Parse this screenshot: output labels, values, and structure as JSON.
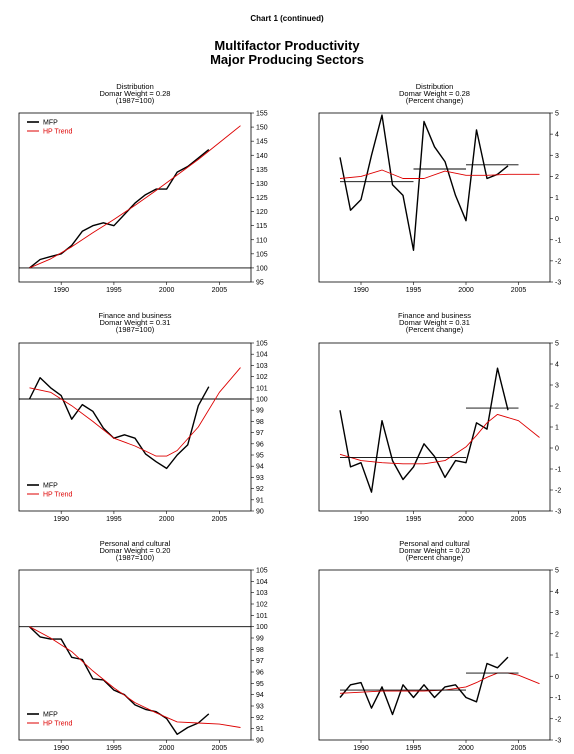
{
  "page": {
    "header": "Chart 1 (continued)",
    "title": "Multifactor Productivity",
    "subtitle": "Major Producing Sectors"
  },
  "colors": {
    "mfp": "#000000",
    "trend": "#dd0000"
  },
  "chart_data": [
    {
      "type": "line",
      "title": "Distribution",
      "subtitle": "Domar Weight = 0.28",
      "subtitle2": "(1987=100)",
      "xlim": [
        1986,
        2008
      ],
      "ylim": [
        95,
        155
      ],
      "yticks": [
        95,
        100,
        105,
        110,
        115,
        120,
        125,
        130,
        135,
        140,
        145,
        150,
        155
      ],
      "xticks": [
        1990,
        1995,
        2000,
        2005
      ],
      "baseline": 100,
      "legend": "top-left",
      "series": [
        {
          "name": "MFP",
          "x": [
            1987,
            1988,
            1989,
            1990,
            1991,
            1992,
            1993,
            1994,
            1995,
            1996,
            1997,
            1998,
            1999,
            2000,
            2001,
            2002,
            2003,
            2004
          ],
          "y": [
            100,
            103,
            104,
            105,
            108,
            113,
            115,
            116,
            115,
            119,
            123,
            126,
            128,
            128,
            134,
            136,
            139,
            142
          ]
        },
        {
          "name": "HP Trend",
          "x": [
            1987,
            1989,
            1991,
            1993,
            1995,
            1997,
            1999,
            2001,
            2003,
            2005,
            2007
          ],
          "y": [
            100,
            103.2,
            107.5,
            112.5,
            117.2,
            122.2,
            127.5,
            133,
            138.5,
            144.5,
            150.5
          ]
        }
      ]
    },
    {
      "type": "line",
      "title": "Distribution",
      "subtitle": "Domar Weight = 0.28",
      "subtitle2": "(Percent change)",
      "xlim": [
        1986,
        2008
      ],
      "ylim": [
        -3,
        5
      ],
      "yticks": [
        -3,
        -2,
        -1,
        0,
        1,
        2,
        3,
        4,
        5
      ],
      "xticks": [
        1990,
        1995,
        2000,
        2005
      ],
      "series": [
        {
          "name": "MFP",
          "x": [
            1988,
            1989,
            1990,
            1991,
            1992,
            1993,
            1994,
            1995,
            1996,
            1997,
            1998,
            1999,
            2000,
            2001,
            2002,
            2003,
            2004
          ],
          "y": [
            2.9,
            0.4,
            0.9,
            3.0,
            4.9,
            1.6,
            1.1,
            -1.5,
            4.6,
            3.4,
            2.7,
            1.1,
            -0.1,
            4.2,
            1.9,
            2.1,
            2.5
          ]
        },
        {
          "name": "HP Trend",
          "x": [
            1988,
            1990,
            1992,
            1994,
            1996,
            1998,
            2000,
            2002,
            2004,
            2006,
            2007
          ],
          "y": [
            1.9,
            2.0,
            2.3,
            1.9,
            1.9,
            2.25,
            2.05,
            2.05,
            2.1,
            2.1,
            2.1
          ]
        },
        {
          "name": "Period average",
          "x": [
            1988,
            1995
          ],
          "y": [
            1.75,
            1.75
          ]
        },
        {
          "name": "Period average",
          "x": [
            1995,
            2000
          ],
          "y": [
            2.35,
            2.35
          ]
        },
        {
          "name": "Period average",
          "x": [
            2000,
            2005
          ],
          "y": [
            2.55,
            2.55
          ]
        }
      ]
    },
    {
      "type": "line",
      "title": "Finance and business",
      "subtitle": "Domar Weight = 0.31",
      "subtitle2": "(1987=100)",
      "xlim": [
        1986,
        2008
      ],
      "ylim": [
        90,
        105
      ],
      "yticks": [
        90,
        91,
        92,
        93,
        94,
        95,
        96,
        97,
        98,
        99,
        100,
        101,
        102,
        103,
        104,
        105
      ],
      "xticks": [
        1990,
        1995,
        2000,
        2005
      ],
      "baseline": 100,
      "legend": "bottom-left",
      "series": [
        {
          "name": "MFP",
          "x": [
            1987,
            1988,
            1989,
            1990,
            1991,
            1992,
            1993,
            1994,
            1995,
            1996,
            1997,
            1998,
            1999,
            2000,
            2001,
            2002,
            2003,
            2004
          ],
          "y": [
            100,
            101.9,
            101,
            100.3,
            98.2,
            99.5,
            98.9,
            97.4,
            96.5,
            96.8,
            96.5,
            95.1,
            94.4,
            93.8,
            95,
            95.9,
            99.4,
            101.1
          ]
        },
        {
          "name": "HP Trend",
          "x": [
            1987,
            1989,
            1991,
            1993,
            1995,
            1997,
            1999,
            2000,
            2001,
            2003,
            2005,
            2007
          ],
          "y": [
            101,
            100.6,
            99.4,
            98,
            96.5,
            95.8,
            94.9,
            94.9,
            95.4,
            97.5,
            100.6,
            102.8
          ]
        }
      ]
    },
    {
      "type": "line",
      "title": "Finance and business",
      "subtitle": "Domar Weight = 0.31",
      "subtitle2": "(Percent change)",
      "xlim": [
        1986,
        2008
      ],
      "ylim": [
        -3,
        5
      ],
      "yticks": [
        -3,
        -2,
        -1,
        0,
        1,
        2,
        3,
        4,
        5
      ],
      "xticks": [
        1990,
        1995,
        2000,
        2005
      ],
      "series": [
        {
          "name": "MFP",
          "x": [
            1988,
            1989,
            1990,
            1991,
            1992,
            1993,
            1994,
            1995,
            1996,
            1997,
            1998,
            1999,
            2000,
            2001,
            2002,
            2003,
            2004
          ],
          "y": [
            1.8,
            -0.9,
            -0.7,
            -2.1,
            1.3,
            -0.6,
            -1.5,
            -0.9,
            0.2,
            -0.4,
            -1.4,
            -0.6,
            -0.7,
            1.2,
            0.9,
            3.8,
            1.8
          ]
        },
        {
          "name": "HP Trend",
          "x": [
            1988,
            1990,
            1992,
            1994,
            1996,
            1998,
            2000,
            2001,
            2002,
            2003,
            2005,
            2007
          ],
          "y": [
            -0.3,
            -0.6,
            -0.7,
            -0.75,
            -0.75,
            -0.6,
            0.05,
            0.6,
            1.2,
            1.6,
            1.3,
            0.5
          ]
        },
        {
          "name": "Period average",
          "x": [
            1988,
            2000
          ],
          "y": [
            -0.45,
            -0.45
          ]
        },
        {
          "name": "Period average",
          "x": [
            2000,
            2005
          ],
          "y": [
            1.9,
            1.9
          ]
        }
      ]
    },
    {
      "type": "line",
      "title": "Personal and cultural",
      "subtitle": "Domar Weight = 0.20",
      "subtitle2": "(1987=100)",
      "xlim": [
        1986,
        2008
      ],
      "ylim": [
        90,
        105
      ],
      "yticks": [
        90,
        91,
        92,
        93,
        94,
        95,
        96,
        97,
        98,
        99,
        100,
        101,
        102,
        103,
        104,
        105
      ],
      "xticks": [
        1990,
        1995,
        2000,
        2005
      ],
      "baseline": 100,
      "legend": "bottom-left",
      "series": [
        {
          "name": "MFP",
          "x": [
            1987,
            1988,
            1989,
            1990,
            1991,
            1992,
            1993,
            1994,
            1995,
            1996,
            1997,
            1998,
            1999,
            2000,
            2001,
            2002,
            2003,
            2004
          ],
          "y": [
            100,
            99.1,
            98.9,
            98.9,
            97.3,
            97.1,
            95.4,
            95.3,
            94.4,
            94,
            93.1,
            92.7,
            92.5,
            91.9,
            90.5,
            91.1,
            91.5,
            92.3
          ]
        },
        {
          "name": "HP Trend",
          "x": [
            1987,
            1989,
            1991,
            1993,
            1995,
            1997,
            1999,
            2001,
            2003,
            2005,
            2007
          ],
          "y": [
            100,
            99,
            97.8,
            96.1,
            94.6,
            93.3,
            92.4,
            91.6,
            91.5,
            91.4,
            91.1
          ]
        }
      ]
    },
    {
      "type": "line",
      "title": "Personal and cultural",
      "subtitle": "Domar Weight = 0.20",
      "subtitle2": "(Percent change)",
      "xlim": [
        1986,
        2008
      ],
      "ylim": [
        -3,
        5
      ],
      "yticks": [
        -3,
        -2,
        -1,
        0,
        1,
        2,
        3,
        4,
        5
      ],
      "xticks": [
        1990,
        1995,
        2000,
        2005
      ],
      "series": [
        {
          "name": "MFP",
          "x": [
            1988,
            1989,
            1990,
            1991,
            1992,
            1993,
            1994,
            1995,
            1996,
            1997,
            1998,
            1999,
            2000,
            2001,
            2002,
            2003,
            2004
          ],
          "y": [
            -1.0,
            -0.4,
            -0.3,
            -1.5,
            -0.5,
            -1.8,
            -0.4,
            -1.0,
            -0.4,
            -1.0,
            -0.5,
            -0.4,
            -1.0,
            -1.2,
            0.6,
            0.4,
            0.9
          ]
        },
        {
          "name": "HP Trend",
          "x": [
            1988,
            1990,
            1992,
            1994,
            1996,
            1998,
            2000,
            2001,
            2002,
            2003,
            2004,
            2005,
            2007
          ],
          "y": [
            -0.8,
            -0.75,
            -0.7,
            -0.7,
            -0.7,
            -0.65,
            -0.5,
            -0.3,
            -0.05,
            0.15,
            0.15,
            0.05,
            -0.35
          ]
        },
        {
          "name": "Period average",
          "x": [
            1988,
            2000
          ],
          "y": [
            -0.65,
            -0.65
          ]
        },
        {
          "name": "Period average",
          "x": [
            2000,
            2005
          ],
          "y": [
            0.15,
            0.15
          ]
        }
      ]
    }
  ]
}
